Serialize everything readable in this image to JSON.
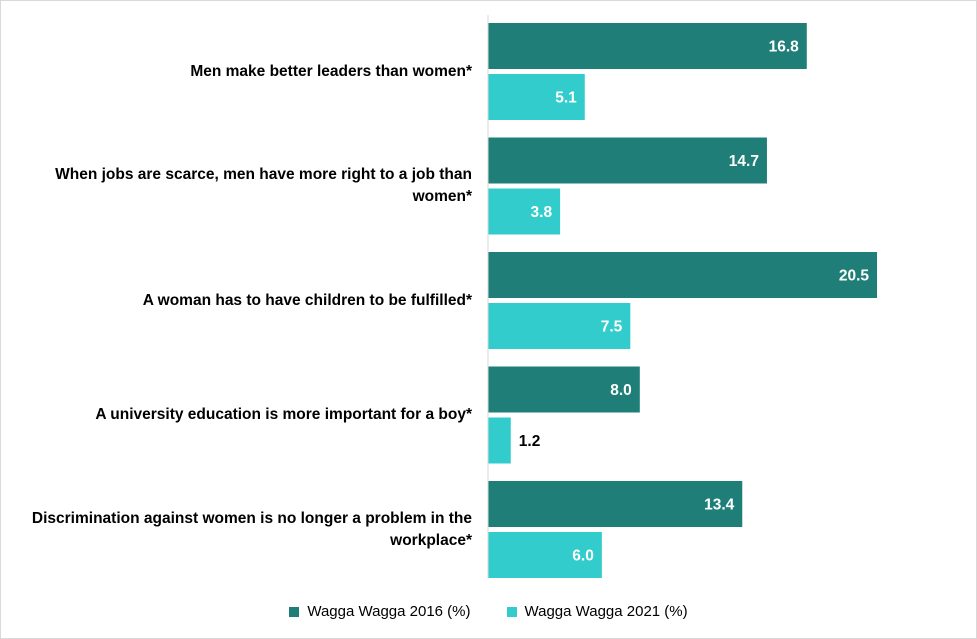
{
  "chart_data": {
    "type": "bar",
    "orientation": "horizontal",
    "categories": [
      "Men make better leaders than women*",
      "When jobs are scarce, men have more right to a job than women*",
      "A woman has to have children to be fulfilled*",
      "A university education is more important for a boy*",
      "Discrimination against women is no longer a problem in the workplace*"
    ],
    "series": [
      {
        "name": "Wagga Wagga 2016 (%)",
        "color": "#1f7f78",
        "values": [
          16.8,
          14.7,
          20.5,
          8.0,
          13.4
        ]
      },
      {
        "name": "Wagga Wagga 2021 (%)",
        "color": "#33cccc",
        "values": [
          5.1,
          3.8,
          7.5,
          1.2,
          6.0
        ]
      }
    ],
    "xlim": [
      0,
      25
    ],
    "grid": false,
    "legend": "bottom",
    "data_labels": true
  }
}
